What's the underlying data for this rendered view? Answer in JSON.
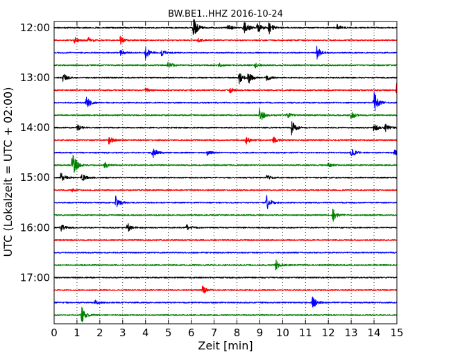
{
  "chart_data": {
    "type": "line",
    "title": "BW.BE1..HHZ 2016-10-24",
    "xlabel": "Zeit  [min]",
    "ylabel": "UTC (Lokalzeit = UTC + 02:00)",
    "xlim": [
      0,
      15
    ],
    "x_ticks": [
      "0",
      "1",
      "2",
      "3",
      "4",
      "5",
      "6",
      "7",
      "8",
      "9",
      "10",
      "11",
      "12",
      "13",
      "14",
      "15"
    ],
    "y_ticks": [
      {
        "label": "12:00",
        "trace": 0
      },
      {
        "label": "13:00",
        "trace": 4
      },
      {
        "label": "14:00",
        "trace": 8
      },
      {
        "label": "15:00",
        "trace": 12
      },
      {
        "label": "16:00",
        "trace": 16
      },
      {
        "label": "17:00",
        "trace": 20
      }
    ],
    "grid": "vertical dotted at each minute",
    "trace_interval_minutes": 15,
    "color_cycle": [
      "#000000",
      "#ff0000",
      "#0000ff",
      "#008000"
    ],
    "series": [
      {
        "start": "12:00",
        "color": "#000000",
        "events": [
          {
            "t": 6.1,
            "a": 16
          },
          {
            "t": 7.6,
            "a": 5
          },
          {
            "t": 8.3,
            "a": 14
          },
          {
            "t": 8.9,
            "a": 8
          },
          {
            "t": 9.4,
            "a": 9
          },
          {
            "t": 12.4,
            "a": 5
          }
        ]
      },
      {
        "start": "12:15",
        "color": "#ff0000",
        "events": [
          {
            "t": 0.9,
            "a": 6
          },
          {
            "t": 1.5,
            "a": 4
          },
          {
            "t": 2.9,
            "a": 6
          },
          {
            "t": 6.3,
            "a": 3
          }
        ]
      },
      {
        "start": "12:30",
        "color": "#0000ff",
        "events": [
          {
            "t": 2.9,
            "a": 4
          },
          {
            "t": 4.0,
            "a": 9
          },
          {
            "t": 4.7,
            "a": 5
          },
          {
            "t": 11.5,
            "a": 9
          }
        ]
      },
      {
        "start": "12:45",
        "color": "#008000",
        "events": [
          {
            "t": 5.0,
            "a": 6
          },
          {
            "t": 7.2,
            "a": 3
          },
          {
            "t": 8.8,
            "a": 4
          }
        ]
      },
      {
        "start": "13:00",
        "color": "#000000",
        "events": [
          {
            "t": 0.4,
            "a": 6
          },
          {
            "t": 8.1,
            "a": 8
          },
          {
            "t": 8.5,
            "a": 9
          },
          {
            "t": 9.3,
            "a": 5
          }
        ]
      },
      {
        "start": "13:15",
        "color": "#ff0000",
        "events": [
          {
            "t": 4.0,
            "a": 3
          },
          {
            "t": 7.7,
            "a": 4
          },
          {
            "t": 15.0,
            "a": 12
          }
        ]
      },
      {
        "start": "13:30",
        "color": "#0000ff",
        "events": [
          {
            "t": 1.4,
            "a": 10
          },
          {
            "t": 14.0,
            "a": 16
          }
        ]
      },
      {
        "start": "13:45",
        "color": "#008000",
        "events": [
          {
            "t": 9.0,
            "a": 12
          },
          {
            "t": 10.2,
            "a": 5
          },
          {
            "t": 13.0,
            "a": 7
          }
        ]
      },
      {
        "start": "14:00",
        "color": "#000000",
        "events": [
          {
            "t": 1.0,
            "a": 5
          },
          {
            "t": 10.4,
            "a": 11
          },
          {
            "t": 14.0,
            "a": 6
          },
          {
            "t": 14.5,
            "a": 5
          }
        ]
      },
      {
        "start": "14:15",
        "color": "#ff0000",
        "events": [
          {
            "t": 2.4,
            "a": 7
          },
          {
            "t": 8.4,
            "a": 6
          },
          {
            "t": 9.6,
            "a": 5
          }
        ]
      },
      {
        "start": "14:30",
        "color": "#0000ff",
        "events": [
          {
            "t": 4.3,
            "a": 9
          },
          {
            "t": 6.7,
            "a": 4
          },
          {
            "t": 13.0,
            "a": 8
          },
          {
            "t": 14.9,
            "a": 6
          }
        ]
      },
      {
        "start": "14:45",
        "color": "#008000",
        "events": [
          {
            "t": 0.8,
            "a": 22
          },
          {
            "t": 2.2,
            "a": 5
          },
          {
            "t": 12.0,
            "a": 3
          }
        ]
      },
      {
        "start": "15:00",
        "color": "#000000",
        "events": [
          {
            "t": 0.3,
            "a": 7
          },
          {
            "t": 1.2,
            "a": 6
          },
          {
            "t": 9.3,
            "a": 5
          }
        ]
      },
      {
        "start": "15:15",
        "color": "#ff0000",
        "events": [
          {
            "t": 0.8,
            "a": 2
          }
        ]
      },
      {
        "start": "15:30",
        "color": "#0000ff",
        "events": [
          {
            "t": 2.7,
            "a": 9
          },
          {
            "t": 9.3,
            "a": 11
          }
        ]
      },
      {
        "start": "15:45",
        "color": "#008000",
        "events": [
          {
            "t": 12.2,
            "a": 9
          }
        ]
      },
      {
        "start": "16:00",
        "color": "#000000",
        "events": [
          {
            "t": 0.3,
            "a": 5
          },
          {
            "t": 3.2,
            "a": 7
          },
          {
            "t": 5.8,
            "a": 5
          }
        ]
      },
      {
        "start": "16:15",
        "color": "#ff0000",
        "events": []
      },
      {
        "start": "16:30",
        "color": "#0000ff",
        "events": []
      },
      {
        "start": "16:45",
        "color": "#008000",
        "events": [
          {
            "t": 9.7,
            "a": 8
          }
        ]
      },
      {
        "start": "17:00",
        "color": "#000000",
        "events": []
      },
      {
        "start": "17:15",
        "color": "#ff0000",
        "events": [
          {
            "t": 6.5,
            "a": 6
          }
        ]
      },
      {
        "start": "17:30",
        "color": "#0000ff",
        "events": [
          {
            "t": 1.8,
            "a": 3
          },
          {
            "t": 11.3,
            "a": 10
          }
        ]
      },
      {
        "start": "17:45",
        "color": "#008000",
        "events": [
          {
            "t": 1.2,
            "a": 12
          }
        ]
      }
    ]
  }
}
